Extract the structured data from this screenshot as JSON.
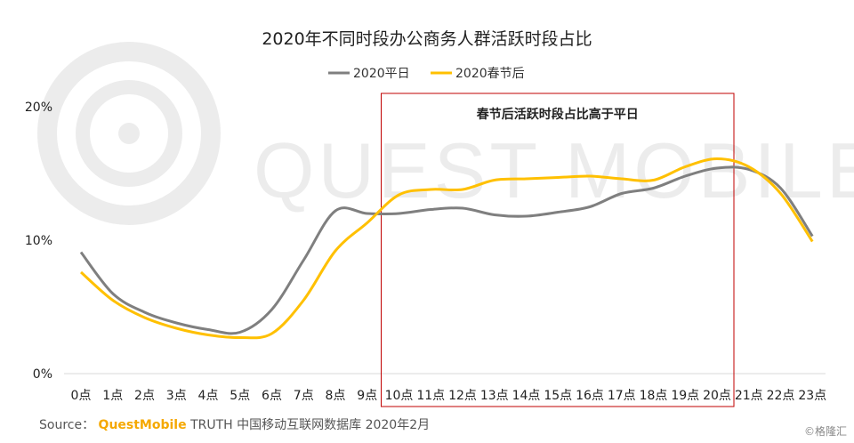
{
  "chart_data": {
    "type": "line",
    "title": "2020年不同时段办公商务人群活跃时段占比",
    "categories": [
      "0点",
      "1点",
      "2点",
      "3点",
      "4点",
      "5点",
      "6点",
      "7点",
      "8点",
      "9点",
      "10点",
      "11点",
      "12点",
      "13点",
      "14点",
      "15点",
      "16点",
      "17点",
      "18点",
      "19点",
      "20点",
      "21点",
      "22点",
      "23点"
    ],
    "y_ticks": [
      "0%",
      "10%",
      "20%"
    ],
    "ylim": [
      0,
      20
    ],
    "grid": false,
    "legend_position": "top-center",
    "series": [
      {
        "name": "2020平日",
        "color": "#7f7f7f",
        "values": [
          9.1,
          6.0,
          4.6,
          3.8,
          3.3,
          3.1,
          4.8,
          8.5,
          12.2,
          12.0,
          12.0,
          12.3,
          12.4,
          11.9,
          11.8,
          12.1,
          12.5,
          13.5,
          13.9,
          14.8,
          15.4,
          15.3,
          13.9,
          10.3
        ]
      },
      {
        "name": "2020春节后",
        "color": "#ffc000",
        "values": [
          7.6,
          5.5,
          4.2,
          3.4,
          2.9,
          2.7,
          3.0,
          5.5,
          9.2,
          11.3,
          13.4,
          13.8,
          13.8,
          14.5,
          14.6,
          14.7,
          14.8,
          14.6,
          14.5,
          15.5,
          16.1,
          15.5,
          13.5,
          9.9
        ]
      }
    ],
    "annotation": {
      "text": "春节后活跃时段占比高于平日",
      "from_category": "10点",
      "to_category": "20点",
      "color": "#c00000"
    }
  },
  "watermark": "QUEST MOBILE",
  "footer": {
    "source_label": "Source：",
    "brand": "QuestMobile",
    "text": "TRUTH 中国移动互联网数据库 2020年2月"
  },
  "credit": "©格隆汇"
}
